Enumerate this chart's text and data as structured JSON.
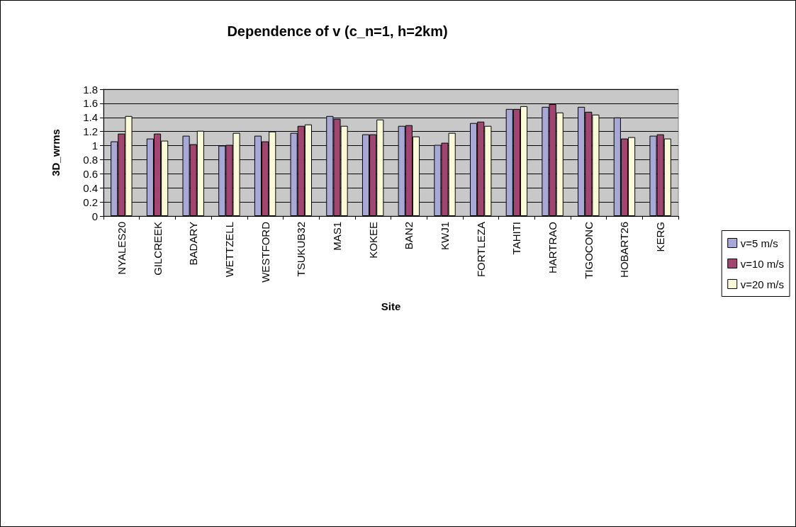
{
  "chart_data": {
    "type": "bar",
    "title": "Dependence of v (c_n=1, h=2km)",
    "xlabel": "Site",
    "ylabel": "3D_wrms",
    "categories": [
      "NYALES20",
      "GILCREEK",
      "BADARY",
      "WETTZELL",
      "WESTFORD",
      "TSUKUB32",
      "MAS1",
      "KOKEE",
      "BAN2",
      "KWJ1",
      "FORTLEZA",
      "TAHITI",
      "HARTRAO",
      "TIGOCONC",
      "HOBART26",
      "KERG"
    ],
    "series": [
      {
        "name": "v=5 m/s",
        "color": "#a8a8d6",
        "values": [
          1.06,
          1.1,
          1.14,
          1.0,
          1.14,
          1.18,
          1.42,
          1.16,
          1.28,
          1.01,
          1.32,
          1.52,
          1.55,
          1.55,
          1.4,
          1.14
        ]
      },
      {
        "name": "v=10 m/s",
        "color": "#a04670",
        "values": [
          1.17,
          1.17,
          1.02,
          1.01,
          1.06,
          1.28,
          1.38,
          1.16,
          1.29,
          1.04,
          1.34,
          1.52,
          1.59,
          1.48,
          1.1,
          1.16
        ]
      },
      {
        "name": "v=20 m/s",
        "color": "#fafad8",
        "values": [
          1.42,
          1.07,
          1.21,
          1.18,
          1.2,
          1.3,
          1.28,
          1.37,
          1.13,
          1.18,
          1.28,
          1.56,
          1.47,
          1.44,
          1.12,
          1.1
        ]
      }
    ],
    "ylim": [
      0,
      1.8
    ],
    "yticks": [
      0,
      0.2,
      0.4,
      0.6,
      0.8,
      1,
      1.2,
      1.4,
      1.6,
      1.8
    ],
    "grid": "y",
    "legend": "right"
  }
}
